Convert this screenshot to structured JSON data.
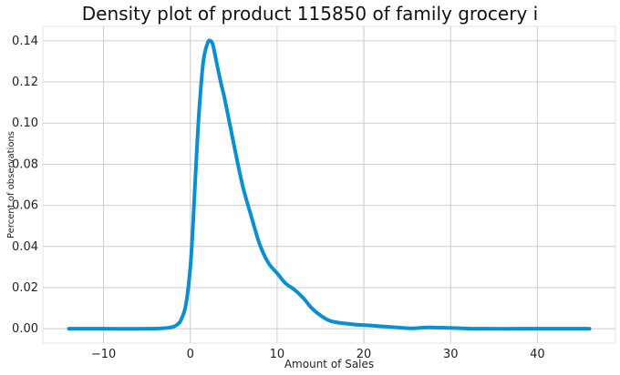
{
  "chart_data": {
    "type": "line",
    "title": "Density plot of product 115850 of family grocery i",
    "xlabel": "Amount of Sales",
    "ylabel": "Percent of observations",
    "xlim": [
      -17.0,
      49.0
    ],
    "ylim": [
      -0.007,
      0.147
    ],
    "xticks": [
      -10,
      0,
      10,
      20,
      30,
      40
    ],
    "yticks": [
      0.0,
      0.02,
      0.04,
      0.06,
      0.08,
      0.1,
      0.12,
      0.14
    ],
    "xtick_labels": [
      "−10",
      "0",
      "10",
      "20",
      "30",
      "40"
    ],
    "ytick_labels": [
      "0.00",
      "0.02",
      "0.04",
      "0.06",
      "0.08",
      "0.10",
      "0.12",
      "0.14"
    ],
    "grid": true,
    "line_color": "#0a8fd1",
    "x": [
      -14,
      -10,
      -5,
      -2.5,
      -1.5,
      -1.0,
      -0.5,
      0.0,
      0.3,
      0.6,
      1.0,
      1.5,
      2.0,
      2.3,
      2.6,
      3.0,
      3.5,
      4.0,
      5.0,
      6.0,
      7.0,
      8.0,
      9.0,
      10.0,
      11.0,
      12.0,
      13.0,
      14.0,
      15.0,
      16.0,
      17.0,
      18.0,
      19.0,
      20.0,
      22.0,
      24.0,
      25.5,
      27.0,
      28.0,
      29.0,
      30.0,
      32.0,
      34.0,
      38.0,
      42.0,
      46.0
    ],
    "y": [
      0.0,
      0.0,
      0.0,
      0.0005,
      0.002,
      0.005,
      0.012,
      0.03,
      0.05,
      0.075,
      0.105,
      0.13,
      0.139,
      0.14,
      0.138,
      0.13,
      0.12,
      0.111,
      0.09,
      0.07,
      0.055,
      0.041,
      0.032,
      0.027,
      0.022,
      0.019,
      0.015,
      0.01,
      0.0065,
      0.004,
      0.003,
      0.0025,
      0.002,
      0.0018,
      0.0012,
      0.0006,
      0.0002,
      0.0006,
      0.0006,
      0.0005,
      0.0004,
      0.0001,
      0.0,
      0.0,
      0.0,
      0.0
    ]
  }
}
